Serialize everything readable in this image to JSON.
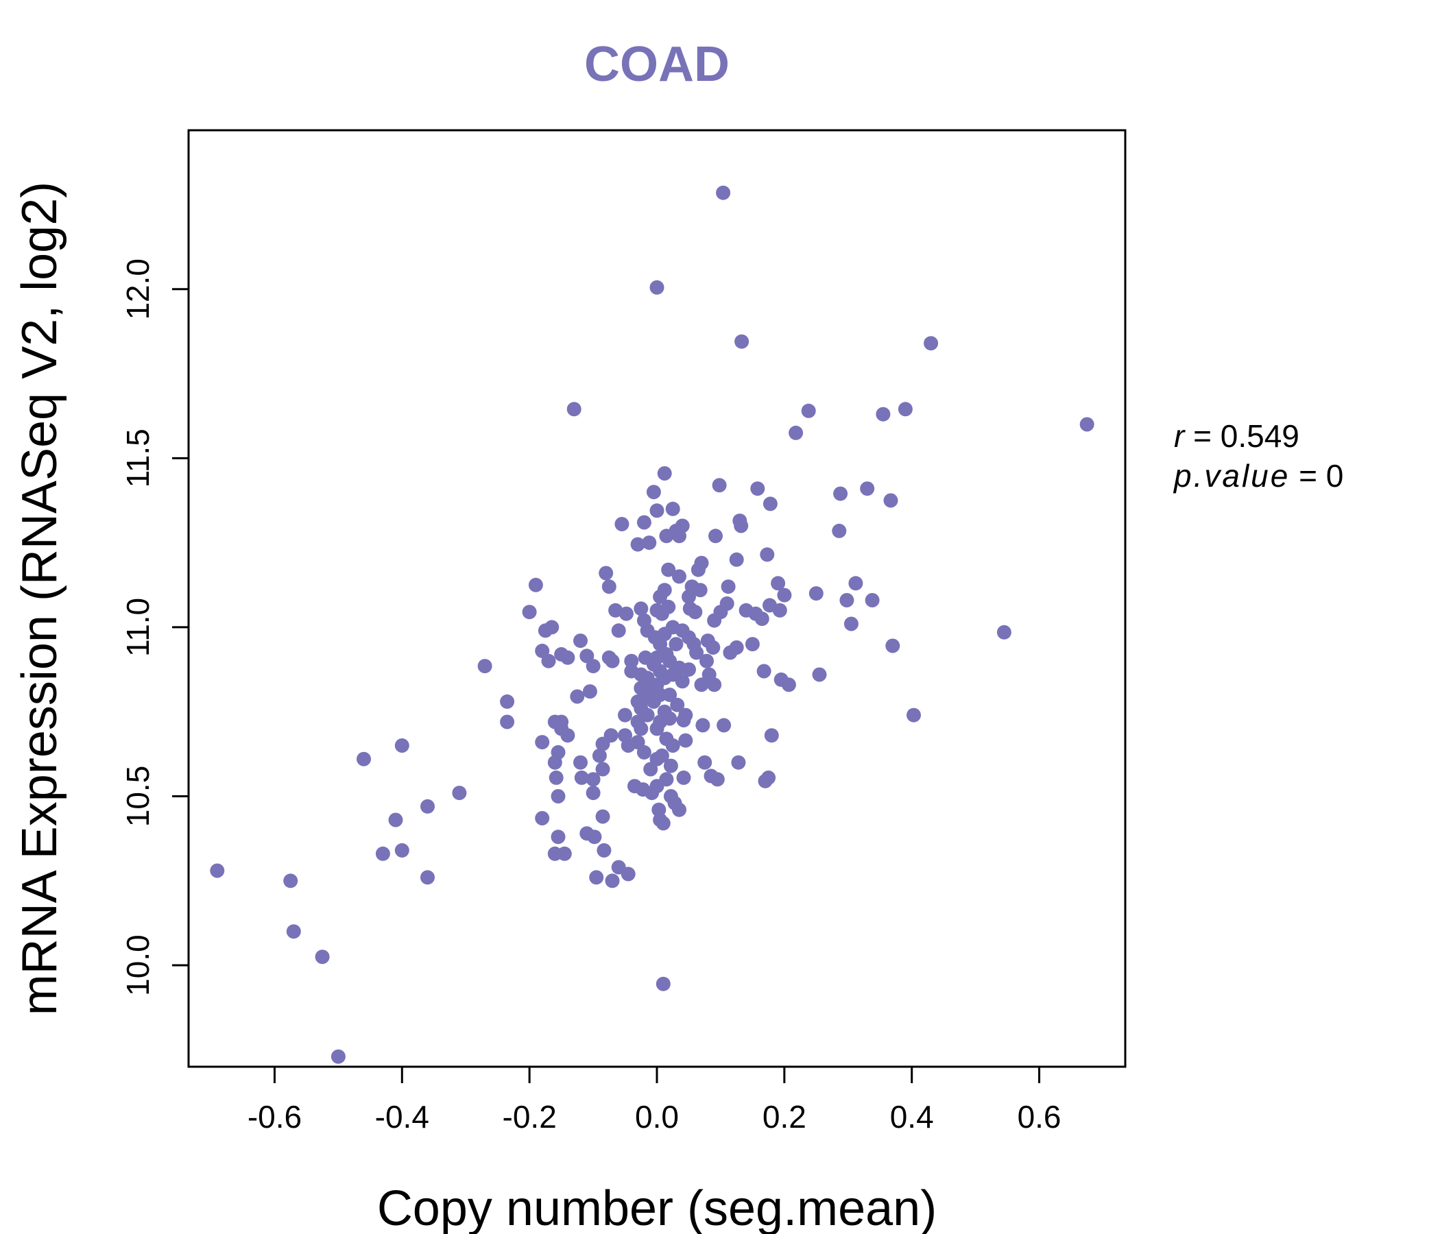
{
  "chart_data": {
    "type": "scatter",
    "title": "COAD",
    "xlabel": "Copy number (seg.mean)",
    "ylabel": "mRNA Expression (RNASeq V2, log2)",
    "xlim": [
      -0.735,
      0.735
    ],
    "ylim": [
      9.7,
      12.47
    ],
    "x_ticks": [
      -0.6,
      -0.4,
      -0.2,
      0.0,
      0.2,
      0.4,
      0.6
    ],
    "x_tick_labels": [
      "-0.6",
      "-0.4",
      "-0.2",
      "0.0",
      "0.2",
      "0.4",
      "0.6"
    ],
    "y_ticks": [
      10.0,
      10.5,
      11.0,
      11.5,
      12.0
    ],
    "y_tick_labels": [
      "10.0",
      "10.5",
      "11.0",
      "11.5",
      "12.0"
    ],
    "grid": false,
    "point_color": "#7872b8",
    "stats": {
      "r_symbol": "r",
      "r_value": "0.549",
      "p_symbol": "p.value",
      "p_value": "0"
    },
    "points": [
      [
        -0.69,
        10.28
      ],
      [
        -0.575,
        10.25
      ],
      [
        -0.57,
        10.1
      ],
      [
        -0.525,
        10.025
      ],
      [
        -0.5,
        9.73
      ],
      [
        -0.46,
        10.61
      ],
      [
        -0.43,
        10.33
      ],
      [
        -0.41,
        10.43
      ],
      [
        -0.4,
        10.65
      ],
      [
        -0.4,
        10.34
      ],
      [
        -0.36,
        10.47
      ],
      [
        -0.36,
        10.26
      ],
      [
        -0.31,
        10.51
      ],
      [
        -0.27,
        10.885
      ],
      [
        -0.235,
        10.78
      ],
      [
        -0.235,
        10.72
      ],
      [
        -0.2,
        11.045
      ],
      [
        -0.19,
        11.125
      ],
      [
        -0.18,
        10.93
      ],
      [
        -0.18,
        10.66
      ],
      [
        -0.18,
        10.435
      ],
      [
        -0.175,
        10.99
      ],
      [
        -0.17,
        10.9
      ],
      [
        -0.165,
        11.0
      ],
      [
        -0.16,
        10.72
      ],
      [
        -0.16,
        10.6
      ],
      [
        -0.158,
        10.555
      ],
      [
        -0.155,
        10.5
      ],
      [
        -0.155,
        10.38
      ],
      [
        -0.16,
        10.33
      ],
      [
        -0.155,
        10.63
      ],
      [
        -0.15,
        10.7
      ],
      [
        -0.15,
        10.72
      ],
      [
        -0.15,
        10.92
      ],
      [
        -0.14,
        10.91
      ],
      [
        -0.14,
        10.68
      ],
      [
        -0.145,
        10.33
      ],
      [
        -0.13,
        11.645
      ],
      [
        -0.125,
        10.795
      ],
      [
        -0.12,
        10.96
      ],
      [
        -0.12,
        10.6
      ],
      [
        -0.118,
        10.555
      ],
      [
        -0.11,
        10.915
      ],
      [
        -0.11,
        10.39
      ],
      [
        -0.105,
        10.81
      ],
      [
        -0.1,
        10.885
      ],
      [
        -0.1,
        10.51
      ],
      [
        -0.1,
        10.55
      ],
      [
        -0.098,
        10.38
      ],
      [
        -0.095,
        10.26
      ],
      [
        -0.09,
        10.62
      ],
      [
        -0.085,
        10.655
      ],
      [
        -0.085,
        10.58
      ],
      [
        -0.085,
        10.44
      ],
      [
        -0.083,
        10.34
      ],
      [
        -0.08,
        11.16
      ],
      [
        -0.075,
        11.12
      ],
      [
        -0.075,
        10.91
      ],
      [
        -0.072,
        10.68
      ],
      [
        -0.07,
        10.25
      ],
      [
        -0.07,
        10.9
      ],
      [
        -0.065,
        11.05
      ],
      [
        -0.06,
        10.99
      ],
      [
        -0.06,
        10.29
      ],
      [
        -0.055,
        11.305
      ],
      [
        -0.05,
        10.74
      ],
      [
        -0.05,
        10.68
      ],
      [
        -0.048,
        11.04
      ],
      [
        -0.045,
        10.65
      ],
      [
        -0.045,
        10.27
      ],
      [
        -0.04,
        10.9
      ],
      [
        -0.04,
        10.87
      ],
      [
        -0.035,
        10.53
      ],
      [
        -0.03,
        11.245
      ],
      [
        -0.03,
        10.78
      ],
      [
        -0.03,
        10.72
      ],
      [
        -0.03,
        10.66
      ],
      [
        -0.025,
        11.055
      ],
      [
        -0.025,
        10.86
      ],
      [
        -0.025,
        10.82
      ],
      [
        -0.025,
        10.76
      ],
      [
        -0.025,
        10.7
      ],
      [
        -0.022,
        10.52
      ],
      [
        -0.02,
        11.31
      ],
      [
        -0.02,
        11.02
      ],
      [
        -0.02,
        10.79
      ],
      [
        -0.02,
        10.63
      ],
      [
        -0.018,
        10.91
      ],
      [
        -0.015,
        10.99
      ],
      [
        -0.015,
        10.85
      ],
      [
        -0.015,
        10.74
      ],
      [
        -0.012,
        11.25
      ],
      [
        -0.01,
        10.81
      ],
      [
        -0.01,
        10.58
      ],
      [
        -0.008,
        10.51
      ],
      [
        -0.005,
        11.4
      ],
      [
        -0.005,
        10.89
      ],
      [
        -0.005,
        10.78
      ],
      [
        -0.003,
        10.97
      ],
      [
        0.0,
        12.005
      ],
      [
        0.0,
        11.345
      ],
      [
        0.0,
        11.05
      ],
      [
        0.0,
        10.91
      ],
      [
        0.0,
        10.83
      ],
      [
        0.0,
        10.7
      ],
      [
        0.0,
        10.61
      ],
      [
        0.0,
        10.53
      ],
      [
        0.003,
        10.46
      ],
      [
        0.005,
        11.09
      ],
      [
        0.005,
        10.95
      ],
      [
        0.005,
        10.87
      ],
      [
        0.005,
        10.8
      ],
      [
        0.005,
        10.72
      ],
      [
        0.005,
        10.43
      ],
      [
        0.008,
        11.04
      ],
      [
        0.008,
        10.62
      ],
      [
        0.01,
        10.42
      ],
      [
        0.01,
        9.945
      ],
      [
        0.012,
        11.455
      ],
      [
        0.012,
        11.11
      ],
      [
        0.012,
        10.98
      ],
      [
        0.012,
        10.85
      ],
      [
        0.012,
        10.75
      ],
      [
        0.015,
        11.27
      ],
      [
        0.015,
        10.92
      ],
      [
        0.015,
        10.67
      ],
      [
        0.015,
        10.55
      ],
      [
        0.018,
        11.17
      ],
      [
        0.018,
        11.06
      ],
      [
        0.02,
        10.9
      ],
      [
        0.02,
        10.8
      ],
      [
        0.02,
        10.73
      ],
      [
        0.022,
        10.59
      ],
      [
        0.022,
        10.5
      ],
      [
        0.025,
        11.35
      ],
      [
        0.025,
        11.0
      ],
      [
        0.025,
        10.86
      ],
      [
        0.025,
        10.65
      ],
      [
        0.028,
        10.48
      ],
      [
        0.03,
        11.285
      ],
      [
        0.03,
        10.95
      ],
      [
        0.032,
        10.77
      ],
      [
        0.035,
        11.27
      ],
      [
        0.035,
        11.15
      ],
      [
        0.035,
        10.88
      ],
      [
        0.035,
        10.46
      ],
      [
        0.04,
        11.3
      ],
      [
        0.04,
        10.99
      ],
      [
        0.04,
        10.84
      ],
      [
        0.042,
        10.725
      ],
      [
        0.042,
        10.555
      ],
      [
        0.045,
        10.74
      ],
      [
        0.045,
        10.665
      ],
      [
        0.05,
        11.09
      ],
      [
        0.05,
        10.97
      ],
      [
        0.05,
        10.875
      ],
      [
        0.052,
        11.055
      ],
      [
        0.055,
        11.12
      ],
      [
        0.058,
        10.95
      ],
      [
        0.06,
        11.045
      ],
      [
        0.062,
        10.925
      ],
      [
        0.065,
        11.17
      ],
      [
        0.068,
        11.11
      ],
      [
        0.07,
        11.19
      ],
      [
        0.07,
        10.83
      ],
      [
        0.072,
        10.71
      ],
      [
        0.075,
        10.6
      ],
      [
        0.078,
        10.9
      ],
      [
        0.08,
        10.96
      ],
      [
        0.082,
        10.86
      ],
      [
        0.085,
        10.56
      ],
      [
        0.088,
        10.94
      ],
      [
        0.09,
        11.02
      ],
      [
        0.09,
        10.83
      ],
      [
        0.092,
        11.27
      ],
      [
        0.095,
        10.55
      ],
      [
        0.098,
        11.42
      ],
      [
        0.1,
        11.045
      ],
      [
        0.104,
        12.285
      ],
      [
        0.105,
        10.71
      ],
      [
        0.11,
        11.07
      ],
      [
        0.112,
        11.12
      ],
      [
        0.115,
        10.925
      ],
      [
        0.125,
        11.2
      ],
      [
        0.125,
        10.94
      ],
      [
        0.128,
        10.6
      ],
      [
        0.13,
        11.315
      ],
      [
        0.132,
        11.3
      ],
      [
        0.133,
        11.845
      ],
      [
        0.14,
        11.05
      ],
      [
        0.15,
        10.95
      ],
      [
        0.155,
        11.04
      ],
      [
        0.158,
        11.41
      ],
      [
        0.165,
        11.025
      ],
      [
        0.168,
        10.87
      ],
      [
        0.17,
        10.545
      ],
      [
        0.173,
        11.215
      ],
      [
        0.175,
        10.555
      ],
      [
        0.177,
        11.065
      ],
      [
        0.178,
        11.365
      ],
      [
        0.18,
        10.68
      ],
      [
        0.19,
        11.13
      ],
      [
        0.193,
        11.05
      ],
      [
        0.195,
        10.845
      ],
      [
        0.2,
        11.095
      ],
      [
        0.207,
        10.83
      ],
      [
        0.218,
        11.575
      ],
      [
        0.238,
        11.64
      ],
      [
        0.25,
        11.1
      ],
      [
        0.255,
        10.86
      ],
      [
        0.286,
        11.285
      ],
      [
        0.288,
        11.395
      ],
      [
        0.298,
        11.08
      ],
      [
        0.305,
        11.01
      ],
      [
        0.312,
        11.13
      ],
      [
        0.33,
        11.41
      ],
      [
        0.338,
        11.08
      ],
      [
        0.355,
        11.63
      ],
      [
        0.367,
        11.375
      ],
      [
        0.37,
        10.945
      ],
      [
        0.39,
        11.645
      ],
      [
        0.403,
        10.74
      ],
      [
        0.43,
        11.84
      ],
      [
        0.545,
        10.985
      ],
      [
        0.675,
        11.6
      ]
    ]
  }
}
